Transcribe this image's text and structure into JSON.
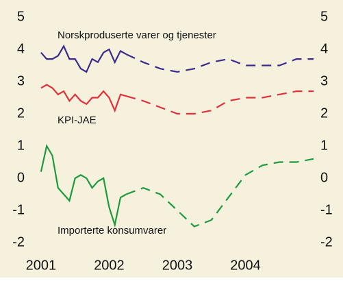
{
  "chart_data": {
    "type": "line",
    "annotations": [
      "Norskproduserte varer og tjenester",
      "KPI-JAE",
      "Importerte konsumvarer"
    ],
    "xlim": [
      2000.85,
      2005.0
    ],
    "xticks": [
      2001,
      2002,
      2003,
      2004
    ],
    "ylim": [
      -2,
      5
    ],
    "yticks": [
      -2,
      -1,
      0,
      1,
      2,
      3,
      4,
      5
    ],
    "y2lim": [
      -2,
      5
    ],
    "y2ticks": [
      -2,
      -1,
      0,
      1,
      2,
      3,
      4,
      5
    ],
    "background": "#f6f1dd",
    "series": [
      {
        "color": "#3b2a8e",
        "segments": [
          {
            "style": "solid",
            "x": [
              2001.0,
              2001.0833,
              2001.1667,
              2001.25,
              2001.3333,
              2001.4167,
              2001.5,
              2001.5833,
              2001.6667,
              2001.75,
              2001.8333,
              2001.9167,
              2002.0,
              2002.0833,
              2002.1667,
              2002.25
            ],
            "values": [
              3.9,
              3.7,
              3.7,
              3.8,
              4.1,
              3.7,
              3.7,
              3.4,
              3.3,
              3.7,
              3.6,
              3.9,
              4.0,
              3.6,
              3.95,
              3.85
            ]
          },
          {
            "style": "dashed",
            "x": [
              2002.25,
              2002.5,
              2002.75,
              2003.0,
              2003.25,
              2003.5,
              2003.75,
              2004.0,
              2004.25,
              2004.5,
              2004.75,
              2005.0
            ],
            "values": [
              3.85,
              3.6,
              3.4,
              3.3,
              3.4,
              3.6,
              3.7,
              3.5,
              3.5,
              3.5,
              3.7,
              3.7
            ]
          }
        ]
      },
      {
        "color": "#e0313b",
        "segments": [
          {
            "style": "solid",
            "x": [
              2001.0,
              2001.0833,
              2001.1667,
              2001.25,
              2001.3333,
              2001.4167,
              2001.5,
              2001.5833,
              2001.6667,
              2001.75,
              2001.8333,
              2001.9167,
              2002.0,
              2002.0833,
              2002.1667,
              2002.25
            ],
            "values": [
              2.8,
              2.9,
              2.8,
              2.6,
              2.7,
              2.4,
              2.6,
              2.4,
              2.3,
              2.5,
              2.5,
              2.7,
              2.5,
              2.1,
              2.6,
              2.55
            ]
          },
          {
            "style": "dashed",
            "x": [
              2002.25,
              2002.5,
              2002.75,
              2003.0,
              2003.25,
              2003.5,
              2003.75,
              2004.0,
              2004.25,
              2004.5,
              2004.75,
              2005.0
            ],
            "values": [
              2.55,
              2.4,
              2.2,
              2.0,
              2.0,
              2.1,
              2.4,
              2.5,
              2.5,
              2.6,
              2.7,
              2.7
            ]
          }
        ]
      },
      {
        "color": "#1c9a3c",
        "segments": [
          {
            "style": "solid",
            "x": [
              2001.0,
              2001.0833,
              2001.1667,
              2001.25,
              2001.3333,
              2001.4167,
              2001.5,
              2001.5833,
              2001.6667,
              2001.75,
              2001.8333,
              2001.9167,
              2002.0,
              2002.0833,
              2002.1667,
              2002.25
            ],
            "values": [
              0.2,
              1.0,
              0.7,
              -0.3,
              -0.5,
              -0.7,
              0.0,
              0.1,
              0.0,
              -0.3,
              -0.1,
              0.0,
              -0.9,
              -1.45,
              -0.6,
              -0.5
            ]
          },
          {
            "style": "dashed",
            "x": [
              2002.25,
              2002.5,
              2002.75,
              2003.0,
              2003.25,
              2003.5,
              2003.75,
              2004.0,
              2004.25,
              2004.5,
              2004.75,
              2005.0
            ],
            "values": [
              -0.5,
              -0.3,
              -0.5,
              -1.0,
              -1.5,
              -1.3,
              -0.6,
              0.1,
              0.4,
              0.5,
              0.5,
              0.6
            ]
          }
        ]
      }
    ]
  }
}
